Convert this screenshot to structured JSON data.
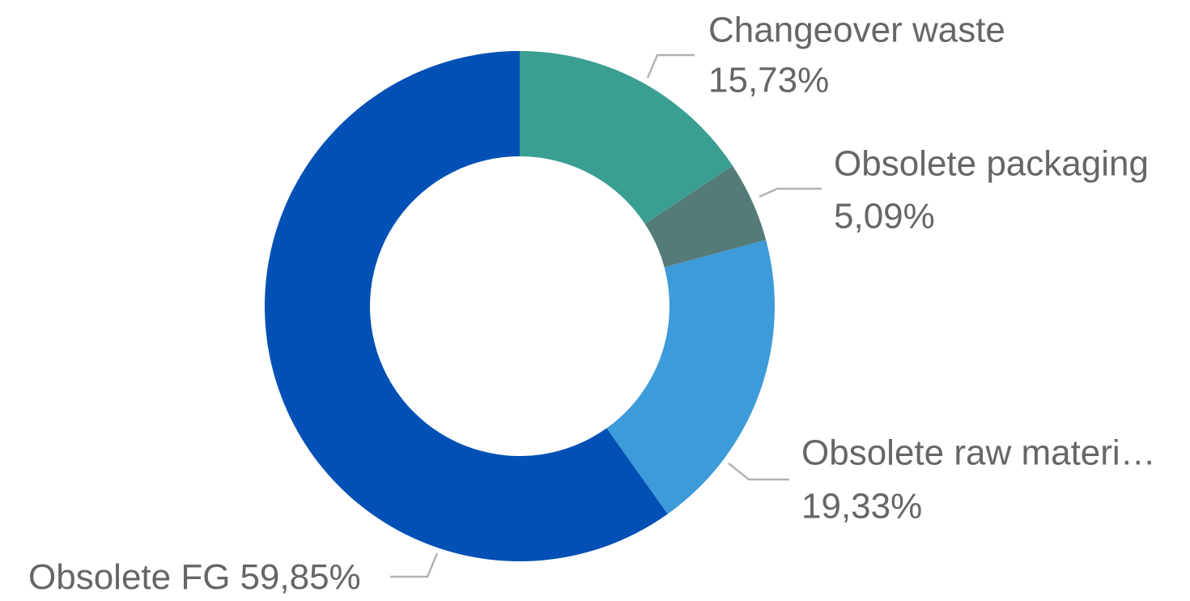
{
  "chart_data": {
    "type": "donut",
    "categories": [
      "Changeover waste",
      "Obsolete packaging",
      "Obsolete raw materi…",
      "Obsolete FG"
    ],
    "values": [
      15.73,
      5.09,
      19.33,
      59.85
    ],
    "value_labels": [
      "15,73%",
      "5,09%",
      "19,33%",
      "59,85%"
    ],
    "colors": [
      "#3a9f91",
      "#557b78",
      "#3d9bd9",
      "#0050b5"
    ]
  }
}
